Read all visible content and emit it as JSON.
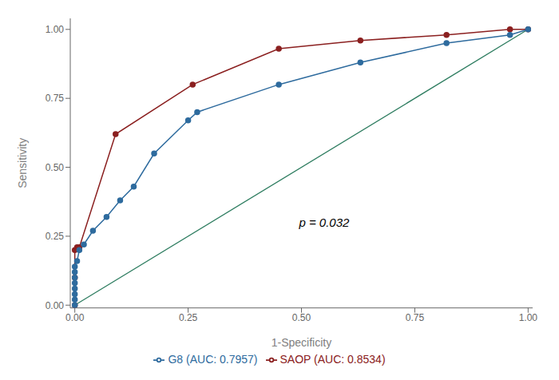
{
  "chart_data": {
    "type": "line",
    "xlabel": "1-Specificity",
    "ylabel": "Sensitivity",
    "xlim": [
      -0.01,
      1.01
    ],
    "ylim": [
      -0.01,
      1.04
    ],
    "xticks": [
      {
        "value": 0.0,
        "label": "0.00"
      },
      0.25,
      {
        "value": 0.5,
        "label": "0.50"
      },
      0.75,
      {
        "value": 1.0,
        "label": "1.00"
      }
    ],
    "yticks": [
      {
        "value": 0.0,
        "label": "0.00"
      },
      0.25,
      {
        "value": 0.5,
        "label": "0.50"
      },
      0.75,
      {
        "value": 1.0,
        "label": "1.00"
      }
    ],
    "grid": false,
    "legend": "bottom",
    "series": [
      {
        "name": "G8 (AUC: 0.7957)",
        "color": "#2E6B9E",
        "marker": "circle",
        "x": [
          0.0,
          0.0,
          0.0,
          0.0,
          0.0,
          0.0,
          0.0,
          0.0,
          0.005,
          0.01,
          0.02,
          0.04,
          0.07,
          0.1,
          0.13,
          0.175,
          0.25,
          0.27,
          0.45,
          0.63,
          0.82,
          0.96,
          1.0
        ],
        "values": [
          0.0,
          0.02,
          0.04,
          0.06,
          0.08,
          0.1,
          0.12,
          0.14,
          0.16,
          0.2,
          0.22,
          0.27,
          0.32,
          0.38,
          0.43,
          0.55,
          0.67,
          0.7,
          0.8,
          0.88,
          0.95,
          0.98,
          1.0
        ]
      },
      {
        "name": "SAOP (AUC: 0.8534)",
        "color": "#8B2020",
        "marker": "circle",
        "x": [
          0.0,
          0.0,
          0.0,
          0.005,
          0.01,
          0.09,
          0.26,
          0.45,
          0.63,
          0.82,
          0.96,
          1.0
        ],
        "values": [
          0.0,
          0.1,
          0.2,
          0.21,
          0.21,
          0.62,
          0.8,
          0.93,
          0.96,
          0.98,
          1.0,
          1.0
        ]
      }
    ],
    "reference": {
      "color": "#2E7D60",
      "x": [
        0.0,
        1.0
      ],
      "values": [
        0.0,
        1.0
      ]
    },
    "annotations": [
      {
        "text": "p = 0.032",
        "x": 0.55,
        "y": 0.3
      }
    ]
  }
}
